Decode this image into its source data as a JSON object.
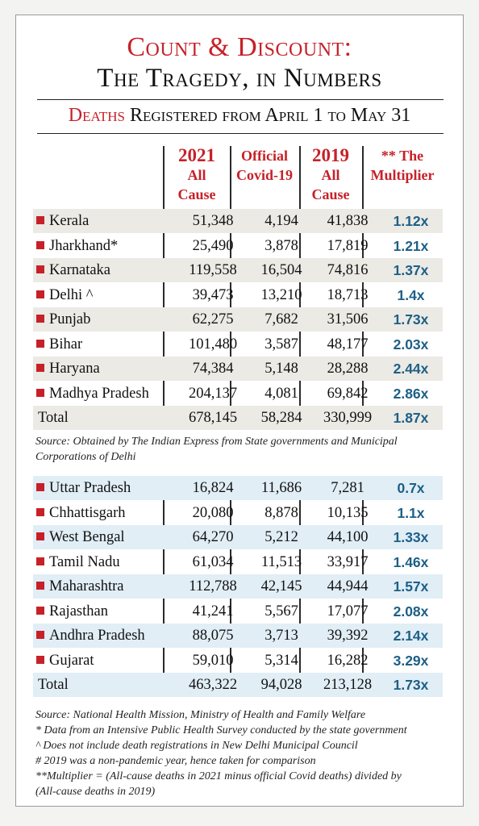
{
  "title_line1": "Count & Discount:",
  "title_line2": "The Tragedy, in Numbers",
  "subtitle_red": "Deaths",
  "subtitle_rest": " Registered from April 1 to May 31",
  "headers": {
    "col1_a": "2021",
    "col1_b": "All",
    "col1_c": "Cause",
    "col2_a": "Official",
    "col2_b": "Covid-19",
    "col3_a": "2019",
    "col3_b": "All",
    "col3_c": "Cause",
    "col4_a": "** The",
    "col4_b": "Multiplier"
  },
  "table1": [
    {
      "state": "Kerala",
      "all2021": "51,348",
      "covid": "4,194",
      "all2019": "41,838",
      "mult": "1.12x"
    },
    {
      "state": "Jharkhand*",
      "all2021": "25,490",
      "covid": "3,878",
      "all2019": "17,819",
      "mult": "1.21x"
    },
    {
      "state": "Karnataka",
      "all2021": "119,558",
      "covid": "16,504",
      "all2019": "74,816",
      "mult": "1.37x"
    },
    {
      "state": "Delhi ^",
      "all2021": "39,473",
      "covid": "13,210",
      "all2019": "18,713",
      "mult": "1.4x"
    },
    {
      "state": "Punjab",
      "all2021": "62,275",
      "covid": "7,682",
      "all2019": "31,506",
      "mult": "1.73x"
    },
    {
      "state": "Bihar",
      "all2021": "101,480",
      "covid": "3,587",
      "all2019": "48,177",
      "mult": "2.03x"
    },
    {
      "state": "Haryana",
      "all2021": "74,384",
      "covid": "5,148",
      "all2019": "28,288",
      "mult": "2.44x"
    },
    {
      "state": "Madhya Pradesh",
      "all2021": "204,137",
      "covid": "4,081",
      "all2019": "69,842",
      "mult": "2.86x"
    }
  ],
  "total1": {
    "state": "Total",
    "all2021": "678,145",
    "covid": "58,284",
    "all2019": "330,999",
    "mult": "1.87x"
  },
  "source1_line1": "Source: Obtained by The Indian Express from State governments and Municipal",
  "source1_line2": "Corporations of Delhi",
  "table2": [
    {
      "state": "Uttar Pradesh",
      "all2021": "16,824",
      "covid": "11,686",
      "all2019": "7,281",
      "mult": "0.7x"
    },
    {
      "state": "Chhattisgarh",
      "all2021": "20,080",
      "covid": "8,878",
      "all2019": "10,135",
      "mult": "1.1x"
    },
    {
      "state": "West Bengal",
      "all2021": "64,270",
      "covid": "5,212",
      "all2019": "44,100",
      "mult": "1.33x"
    },
    {
      "state": "Tamil Nadu",
      "all2021": "61,034",
      "covid": "11,513",
      "all2019": "33,917",
      "mult": "1.46x"
    },
    {
      "state": "Maharashtra",
      "all2021": "112,788",
      "covid": "42,145",
      "all2019": "44,944",
      "mult": "1.57x"
    },
    {
      "state": "Rajasthan",
      "all2021": "41,241",
      "covid": "5,567",
      "all2019": "17,077",
      "mult": "2.08x"
    },
    {
      "state": "Andhra Pradesh",
      "all2021": "88,075",
      "covid": "3,713",
      "all2019": "39,392",
      "mult": "2.14x"
    },
    {
      "state": "Gujarat",
      "all2021": "59,010",
      "covid": "5,314",
      "all2019": "16,282",
      "mult": "3.29x"
    }
  ],
  "total2": {
    "state": "Total",
    "all2021": "463,322",
    "covid": "94,028",
    "all2019": "213,128",
    "mult": "1.73x"
  },
  "notes": [
    "Source: National Health Mission, Ministry of Health and Family Welfare",
    "* Data from an Intensive Public Health Survey conducted by the state government",
    "^ Does not include death registrations in New Delhi Municipal Council",
    "# 2019 was a non-pandemic year, hence taken for comparison",
    "**Multiplier = (All-cause deaths in 2021 minus official Covid deaths) divided by",
    "(All-cause deaths in 2019)"
  ]
}
